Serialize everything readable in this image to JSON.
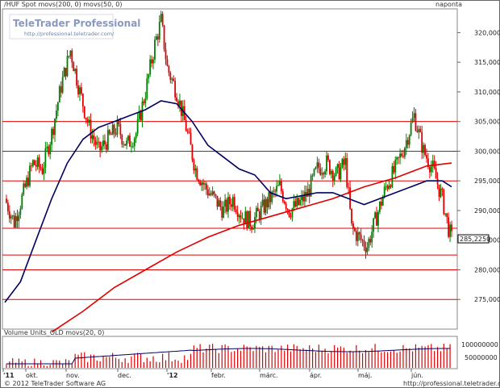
{
  "header": {
    "series_label": "/HUF Spot movs(200, 0) movs(50, 0)",
    "period_label": "naponta"
  },
  "watermark": {
    "brand": "TeleTrader Professional",
    "url": "http://professional.teletrader.com/"
  },
  "volume_panel": {
    "label": "Volume Units_OLD movs(20, 0)",
    "ticks": [
      "100000000",
      "50000000"
    ]
  },
  "footer": {
    "copyright": "© 2012 TeleTrader Software AG",
    "url": "http://professional.teletrader.com/"
  },
  "colors": {
    "up": "#008000",
    "down": "#e00000",
    "ma50": "#000060",
    "ma200": "#e00000",
    "hline": "#e00000",
    "last_badge_bg": "#ffffff"
  },
  "chart_data": {
    "type": "candlestick",
    "y_ticks": [
      "320,0000",
      "315,0000",
      "310,0000",
      "305,0000",
      "300,0000",
      "295,0000",
      "290,0000",
      "285,0000",
      "280,0000",
      "275,0000"
    ],
    "ylim": [
      270,
      324
    ],
    "x_ticks": [
      "'11",
      "okt.",
      "nov.",
      "dec.",
      "'12",
      "febr.",
      "márc.",
      "ápr.",
      "máj.",
      "jún."
    ],
    "last_value": "285,2250",
    "horizontal_lines": [
      305.0,
      300.0,
      295.0,
      287.0,
      282.5,
      280.0,
      275.0
    ],
    "price_path": [
      [
        0,
        292
      ],
      [
        6,
        288
      ],
      [
        12,
        293
      ],
      [
        18,
        298
      ],
      [
        24,
        297
      ],
      [
        30,
        303
      ],
      [
        36,
        311
      ],
      [
        42,
        317
      ],
      [
        48,
        310
      ],
      [
        54,
        304
      ],
      [
        60,
        300
      ],
      [
        66,
        302
      ],
      [
        72,
        304
      ],
      [
        78,
        301
      ],
      [
        84,
        303
      ],
      [
        90,
        310
      ],
      [
        96,
        318
      ],
      [
        100,
        322
      ],
      [
        104,
        314
      ],
      [
        110,
        310
      ],
      [
        116,
        304
      ],
      [
        122,
        297
      ],
      [
        128,
        294
      ],
      [
        134,
        292
      ],
      [
        140,
        290
      ],
      [
        146,
        292
      ],
      [
        152,
        289
      ],
      [
        158,
        288
      ],
      [
        164,
        290
      ],
      [
        170,
        292
      ],
      [
        176,
        294
      ],
      [
        182,
        290
      ],
      [
        188,
        291
      ],
      [
        194,
        293
      ],
      [
        200,
        297
      ],
      [
        206,
        298
      ],
      [
        212,
        296
      ],
      [
        218,
        298
      ],
      [
        222,
        287
      ],
      [
        228,
        285
      ],
      [
        232,
        284
      ],
      [
        238,
        289
      ],
      [
        244,
        294
      ],
      [
        250,
        297
      ],
      [
        256,
        301
      ],
      [
        262,
        306
      ],
      [
        268,
        300
      ],
      [
        274,
        297
      ],
      [
        280,
        292
      ],
      [
        284,
        287
      ],
      [
        286,
        285.2
      ]
    ],
    "ma50_path": [
      [
        0,
        274.5
      ],
      [
        10,
        278
      ],
      [
        20,
        285
      ],
      [
        30,
        292
      ],
      [
        40,
        298
      ],
      [
        50,
        302
      ],
      [
        60,
        304
      ],
      [
        70,
        305
      ],
      [
        80,
        306
      ],
      [
        90,
        307
      ],
      [
        100,
        308.5
      ],
      [
        110,
        308
      ],
      [
        120,
        305
      ],
      [
        130,
        301
      ],
      [
        140,
        299
      ],
      [
        150,
        297
      ],
      [
        160,
        296
      ],
      [
        170,
        293
      ],
      [
        180,
        292
      ],
      [
        190,
        292.5
      ],
      [
        200,
        293
      ],
      [
        210,
        293
      ],
      [
        220,
        292
      ],
      [
        230,
        291
      ],
      [
        240,
        292
      ],
      [
        250,
        293
      ],
      [
        260,
        294
      ],
      [
        270,
        295
      ],
      [
        280,
        295
      ],
      [
        286,
        294
      ]
    ],
    "ma200_path": [
      [
        30,
        269.5
      ],
      [
        50,
        273
      ],
      [
        70,
        277
      ],
      [
        90,
        280
      ],
      [
        110,
        283
      ],
      [
        130,
        285.5
      ],
      [
        150,
        287.5
      ],
      [
        170,
        289
      ],
      [
        190,
        290.5
      ],
      [
        210,
        292
      ],
      [
        230,
        294
      ],
      [
        250,
        295.5
      ],
      [
        270,
        297.5
      ],
      [
        286,
        298
      ]
    ]
  }
}
